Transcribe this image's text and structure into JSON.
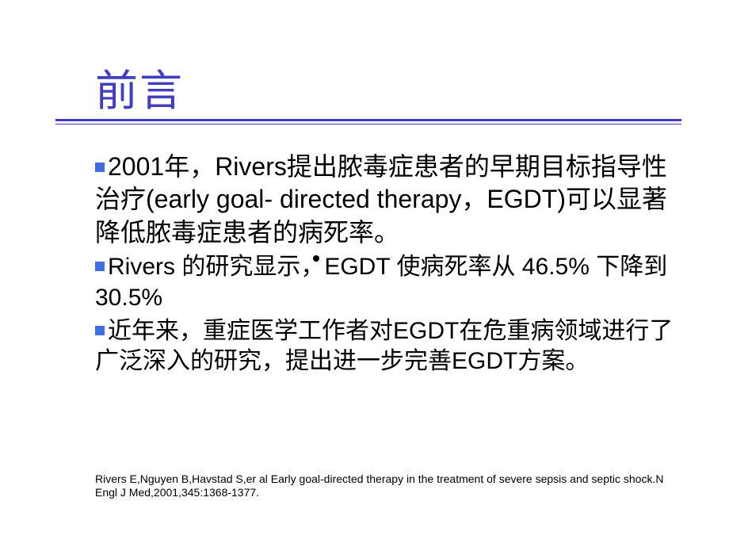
{
  "slide": {
    "title": "前言",
    "title_color": "#3f3fbf",
    "underline_color": "#3f3fbf",
    "bullet_color": "#3f6fdf",
    "text_color": "#000000",
    "background": "#ffffff",
    "bullets": [
      {
        "text": "2001年，Rivers提出脓毒症患者的早期目标指导性治疗(early goal- directed therapy，EGDT)可以显著降低脓毒症患者的病死率。",
        "first_word_large": true
      },
      {
        "text": "Rivers 的研究显示，EGDT 使病死率从 46.5% 下降到 30.5%"
      },
      {
        "text": "近年来，重症医学工作者对EGDT在危重病领域进行了广泛深入的研究，提出进一步完善EGDT方案。"
      }
    ],
    "citation": "Rivers E,Nguyen B,Havstad S,er al Early goal-directed therapy in the treatment of severe sepsis and septic shock.N Engl J Med,2001,345:1368-1377."
  }
}
